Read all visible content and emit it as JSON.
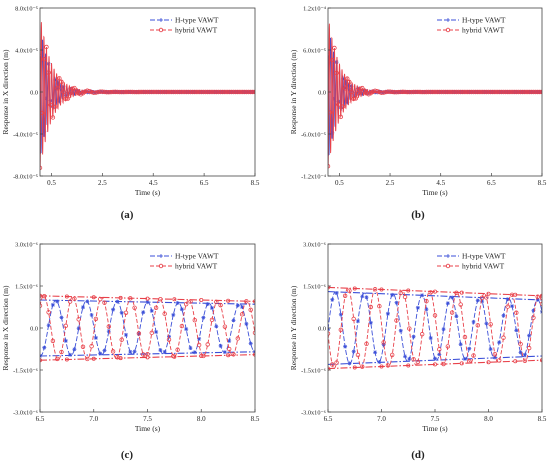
{
  "colors": {
    "h_type": "#3b4fd8",
    "hybrid": "#e8414a",
    "axis": "#444444"
  },
  "panel_labels": [
    "(a)",
    "(b)",
    "(c)",
    "(d)"
  ],
  "chart_data": [
    {
      "type": "line",
      "panel": "(a)",
      "xlabel": "Time (s)",
      "ylabel": "Response in X direction (m)",
      "xlim": [
        0.05,
        8.5
      ],
      "ylim": [
        -8e-05,
        8e-05
      ],
      "x_ticks": [
        0.5,
        2.5,
        4.5,
        6.5,
        8.5
      ],
      "x_tick_labels": [
        "0.5",
        "2.5",
        "4.5",
        "6.5",
        "8.5"
      ],
      "y_ticks": [
        -8e-05,
        -4e-05,
        0,
        4e-05,
        8e-05
      ],
      "y_tick_labels": [
        "-8.0x10⁻⁵",
        "-4.0x10⁻⁵",
        "0.0",
        "4.0x10⁻⁵",
        "8.0x10⁻⁵"
      ],
      "legend": "top-right",
      "series": [
        {
          "name": "H-type VAWT",
          "amplitude": 6.5e-05,
          "decay": 2.6,
          "period": 0.12,
          "phase": 0.0,
          "markers": "star"
        },
        {
          "name": "hybrid VAWT",
          "amplitude": 7.5e-05,
          "decay": 2.2,
          "period": 0.1,
          "phase": 1.3,
          "markers": "circle"
        }
      ]
    },
    {
      "type": "line",
      "panel": "(b)",
      "xlabel": "Time (s)",
      "ylabel": "Response in Y direction (m)",
      "xlim": [
        0.05,
        8.5
      ],
      "ylim": [
        -0.00012,
        0.00012
      ],
      "x_ticks": [
        0.5,
        2.5,
        4.5,
        6.5,
        8.5
      ],
      "x_tick_labels": [
        "0.5",
        "2.5",
        "4.5",
        "6.5",
        "8.5"
      ],
      "y_ticks": [
        -0.00012,
        -6e-05,
        0,
        6e-05,
        0.00012
      ],
      "y_tick_labels": [
        "-1.2x10⁻⁴",
        "-6.0x10⁻⁵",
        "0.0",
        "6.0x10⁻⁵",
        "1.2x10⁻⁴"
      ],
      "legend": "top-right",
      "series": [
        {
          "name": "H-type VAWT",
          "amplitude": 0.0001,
          "decay": 2.5,
          "period": 0.12,
          "phase": 0.0,
          "markers": "star"
        },
        {
          "name": "hybrid VAWT",
          "amplitude": 0.00011,
          "decay": 2.2,
          "period": 0.1,
          "phase": 1.3,
          "markers": "circle"
        }
      ]
    },
    {
      "type": "line",
      "panel": "(c)",
      "xlabel": "Time (s)",
      "ylabel": "Response in X direction (m)",
      "xlim": [
        6.5,
        8.5
      ],
      "ylim": [
        -3e-06,
        3e-06
      ],
      "x_ticks": [
        6.5,
        7.0,
        7.5,
        8.0,
        8.5
      ],
      "x_tick_labels": [
        "6.5",
        "7.0",
        "7.5",
        "8.0",
        "8.5"
      ],
      "y_ticks": [
        -3e-06,
        -1.5e-06,
        0,
        1.5e-06,
        3e-06
      ],
      "y_tick_labels": [
        "-3.0x10⁻⁶",
        "-1.5x10⁻⁶",
        "0.0",
        "1.5x10⁻⁶",
        "3.0x10⁻⁶"
      ],
      "legend": "top-right",
      "series": [
        {
          "name": "H-type VAWT",
          "amp_start": 1e-06,
          "amp_end": 8.5e-07,
          "period": 0.285,
          "phase": -0.45,
          "markers": "star",
          "envelope": true
        },
        {
          "name": "hybrid VAWT",
          "amp_start": 1.15e-06,
          "amp_end": 9.5e-07,
          "period": 0.27,
          "phase": 0.3,
          "markers": "circle",
          "envelope": true
        }
      ]
    },
    {
      "type": "line",
      "panel": "(d)",
      "xlabel": "Time (s)",
      "ylabel": "Response in Y direction (m)",
      "xlim": [
        6.5,
        8.5
      ],
      "ylim": [
        -3e-06,
        3e-06
      ],
      "x_ticks": [
        6.5,
        7.0,
        7.5,
        8.0,
        8.5
      ],
      "x_tick_labels": [
        "6.5",
        "7.0",
        "7.5",
        "8.0",
        "8.5"
      ],
      "y_ticks": [
        -3e-06,
        -1.5e-06,
        0,
        1.5e-06,
        3e-06
      ],
      "y_tick_labels": [
        "-3.0x10⁻⁶",
        "-1.5x10⁻⁶",
        "0.0",
        "1.5x10⁻⁶",
        "3.0x10⁻⁶"
      ],
      "legend": "top-right",
      "series": [
        {
          "name": "H-type VAWT",
          "amp_start": 1.3e-06,
          "amp_end": 1e-06,
          "period": 0.27,
          "phase": -0.5,
          "markers": "star",
          "envelope": true
        },
        {
          "name": "hybrid VAWT",
          "amp_start": 1.45e-06,
          "amp_end": 1.15e-06,
          "period": 0.255,
          "phase": 0.2,
          "markers": "circle",
          "envelope": true
        }
      ]
    }
  ]
}
